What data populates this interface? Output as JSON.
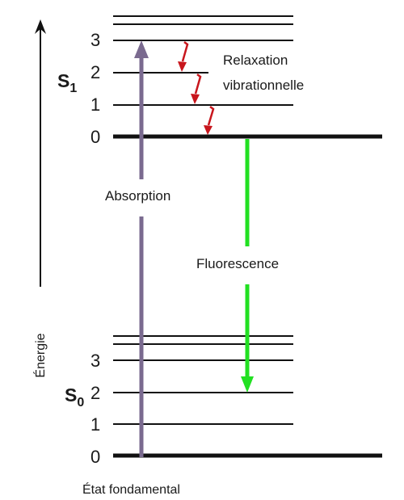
{
  "axis": {
    "label": "Énergie"
  },
  "excited_state": {
    "symbol": "S",
    "subscript": "1",
    "levels": [
      "3",
      "2",
      "1",
      "0"
    ]
  },
  "ground_state": {
    "symbol": "S",
    "subscript": "0",
    "levels": [
      "3",
      "2",
      "1",
      "0"
    ],
    "caption": "État fondamental"
  },
  "transitions": {
    "absorption": {
      "label": "Absorption",
      "color": "#7a6a8f"
    },
    "fluorescence": {
      "label": "Fluorescence",
      "color": "#22e022"
    },
    "relaxation": {
      "label_line1": "Relaxation",
      "label_line2": "vibrationnelle",
      "color": "#c8161d"
    }
  },
  "colors": {
    "level_line": "#111111",
    "text": "#1a1a1a"
  }
}
